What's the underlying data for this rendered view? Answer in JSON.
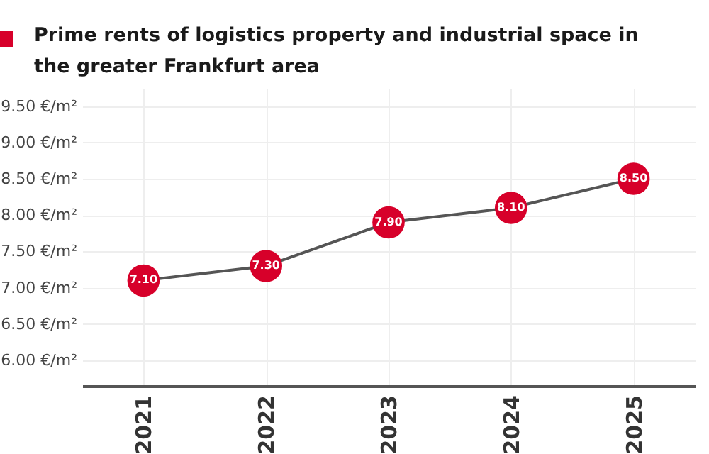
{
  "chart_data": {
    "type": "line",
    "title": "Prime rents of logistics property and industrial space in the greater Frankfurt area",
    "categories": [
      "2021",
      "2022",
      "2023",
      "2024",
      "2025"
    ],
    "series": [
      {
        "color": "#d7002a",
        "values": [
          7.1,
          7.3,
          7.9,
          8.1,
          8.5
        ]
      }
    ],
    "ylim": [
      5.65,
      9.75
    ],
    "yticks": [
      {
        "value": 6,
        "label": "6.00 €/m²"
      },
      {
        "value": 6.5,
        "label": "6.50 €/m²"
      },
      {
        "value": 7,
        "label": "7.00 €/m²"
      },
      {
        "value": 7.5,
        "label": "7.50 €/m²"
      },
      {
        "value": 8,
        "label": "8.00 €/m²"
      },
      {
        "value": 8.5,
        "label": "8.50 €/m²"
      },
      {
        "value": 9,
        "label": "9.00 €/m²"
      },
      {
        "value": 9.5,
        "label": "9.50 €/m²"
      }
    ],
    "grid": true,
    "marker": "circle",
    "line_style": "solid",
    "value_labels": [
      "7.10",
      "7.30",
      "7.90",
      "8.10",
      "8.50"
    ]
  }
}
